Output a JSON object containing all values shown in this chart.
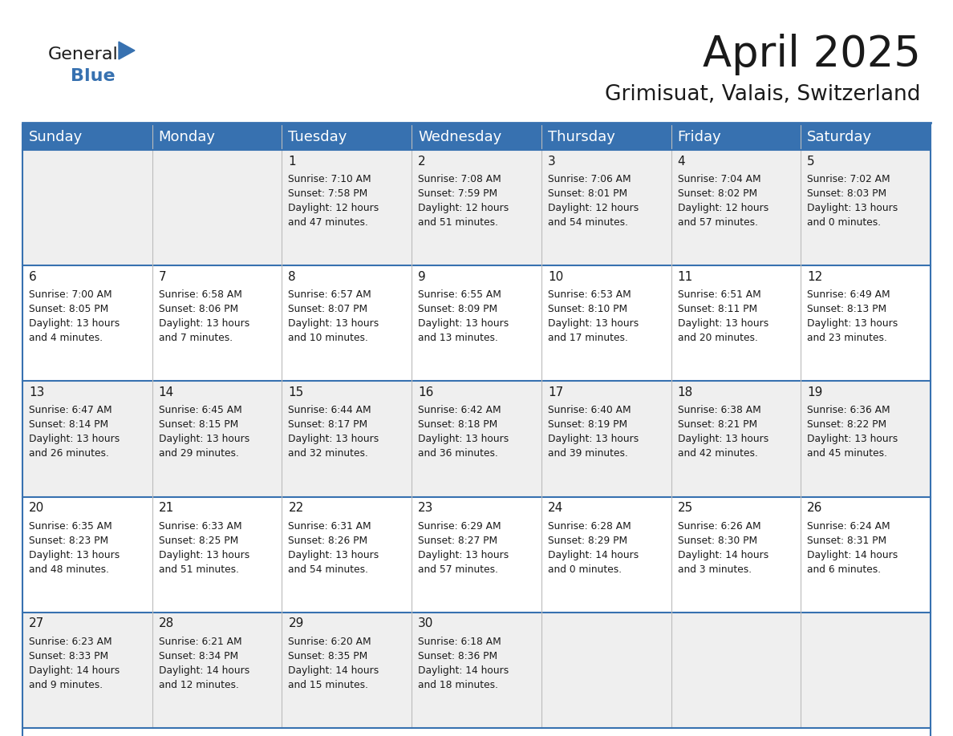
{
  "title": "April 2025",
  "subtitle": "Grimisuat, Valais, Switzerland",
  "days_of_week": [
    "Sunday",
    "Monday",
    "Tuesday",
    "Wednesday",
    "Thursday",
    "Friday",
    "Saturday"
  ],
  "header_bg": "#3771B0",
  "header_text": "#FFFFFF",
  "row_bg_odd": "#EFEFEF",
  "row_bg_even": "#FFFFFF",
  "cell_border": "#3771B0",
  "day_num_color": "#1a1a1a",
  "cell_text_color": "#1a1a1a",
  "weeks": [
    [
      {
        "day": "",
        "info": ""
      },
      {
        "day": "",
        "info": ""
      },
      {
        "day": "1",
        "info": "Sunrise: 7:10 AM\nSunset: 7:58 PM\nDaylight: 12 hours\nand 47 minutes."
      },
      {
        "day": "2",
        "info": "Sunrise: 7:08 AM\nSunset: 7:59 PM\nDaylight: 12 hours\nand 51 minutes."
      },
      {
        "day": "3",
        "info": "Sunrise: 7:06 AM\nSunset: 8:01 PM\nDaylight: 12 hours\nand 54 minutes."
      },
      {
        "day": "4",
        "info": "Sunrise: 7:04 AM\nSunset: 8:02 PM\nDaylight: 12 hours\nand 57 minutes."
      },
      {
        "day": "5",
        "info": "Sunrise: 7:02 AM\nSunset: 8:03 PM\nDaylight: 13 hours\nand 0 minutes."
      }
    ],
    [
      {
        "day": "6",
        "info": "Sunrise: 7:00 AM\nSunset: 8:05 PM\nDaylight: 13 hours\nand 4 minutes."
      },
      {
        "day": "7",
        "info": "Sunrise: 6:58 AM\nSunset: 8:06 PM\nDaylight: 13 hours\nand 7 minutes."
      },
      {
        "day": "8",
        "info": "Sunrise: 6:57 AM\nSunset: 8:07 PM\nDaylight: 13 hours\nand 10 minutes."
      },
      {
        "day": "9",
        "info": "Sunrise: 6:55 AM\nSunset: 8:09 PM\nDaylight: 13 hours\nand 13 minutes."
      },
      {
        "day": "10",
        "info": "Sunrise: 6:53 AM\nSunset: 8:10 PM\nDaylight: 13 hours\nand 17 minutes."
      },
      {
        "day": "11",
        "info": "Sunrise: 6:51 AM\nSunset: 8:11 PM\nDaylight: 13 hours\nand 20 minutes."
      },
      {
        "day": "12",
        "info": "Sunrise: 6:49 AM\nSunset: 8:13 PM\nDaylight: 13 hours\nand 23 minutes."
      }
    ],
    [
      {
        "day": "13",
        "info": "Sunrise: 6:47 AM\nSunset: 8:14 PM\nDaylight: 13 hours\nand 26 minutes."
      },
      {
        "day": "14",
        "info": "Sunrise: 6:45 AM\nSunset: 8:15 PM\nDaylight: 13 hours\nand 29 minutes."
      },
      {
        "day": "15",
        "info": "Sunrise: 6:44 AM\nSunset: 8:17 PM\nDaylight: 13 hours\nand 32 minutes."
      },
      {
        "day": "16",
        "info": "Sunrise: 6:42 AM\nSunset: 8:18 PM\nDaylight: 13 hours\nand 36 minutes."
      },
      {
        "day": "17",
        "info": "Sunrise: 6:40 AM\nSunset: 8:19 PM\nDaylight: 13 hours\nand 39 minutes."
      },
      {
        "day": "18",
        "info": "Sunrise: 6:38 AM\nSunset: 8:21 PM\nDaylight: 13 hours\nand 42 minutes."
      },
      {
        "day": "19",
        "info": "Sunrise: 6:36 AM\nSunset: 8:22 PM\nDaylight: 13 hours\nand 45 minutes."
      }
    ],
    [
      {
        "day": "20",
        "info": "Sunrise: 6:35 AM\nSunset: 8:23 PM\nDaylight: 13 hours\nand 48 minutes."
      },
      {
        "day": "21",
        "info": "Sunrise: 6:33 AM\nSunset: 8:25 PM\nDaylight: 13 hours\nand 51 minutes."
      },
      {
        "day": "22",
        "info": "Sunrise: 6:31 AM\nSunset: 8:26 PM\nDaylight: 13 hours\nand 54 minutes."
      },
      {
        "day": "23",
        "info": "Sunrise: 6:29 AM\nSunset: 8:27 PM\nDaylight: 13 hours\nand 57 minutes."
      },
      {
        "day": "24",
        "info": "Sunrise: 6:28 AM\nSunset: 8:29 PM\nDaylight: 14 hours\nand 0 minutes."
      },
      {
        "day": "25",
        "info": "Sunrise: 6:26 AM\nSunset: 8:30 PM\nDaylight: 14 hours\nand 3 minutes."
      },
      {
        "day": "26",
        "info": "Sunrise: 6:24 AM\nSunset: 8:31 PM\nDaylight: 14 hours\nand 6 minutes."
      }
    ],
    [
      {
        "day": "27",
        "info": "Sunrise: 6:23 AM\nSunset: 8:33 PM\nDaylight: 14 hours\nand 9 minutes."
      },
      {
        "day": "28",
        "info": "Sunrise: 6:21 AM\nSunset: 8:34 PM\nDaylight: 14 hours\nand 12 minutes."
      },
      {
        "day": "29",
        "info": "Sunrise: 6:20 AM\nSunset: 8:35 PM\nDaylight: 14 hours\nand 15 minutes."
      },
      {
        "day": "30",
        "info": "Sunrise: 6:18 AM\nSunset: 8:36 PM\nDaylight: 14 hours\nand 18 minutes."
      },
      {
        "day": "",
        "info": ""
      },
      {
        "day": "",
        "info": ""
      },
      {
        "day": "",
        "info": ""
      }
    ]
  ],
  "logo_color_general": "#1a1a1a",
  "logo_color_blue": "#3771B0",
  "title_fontsize": 38,
  "subtitle_fontsize": 19,
  "header_fontsize": 13,
  "day_num_fontsize": 11,
  "cell_text_fontsize": 8.8
}
